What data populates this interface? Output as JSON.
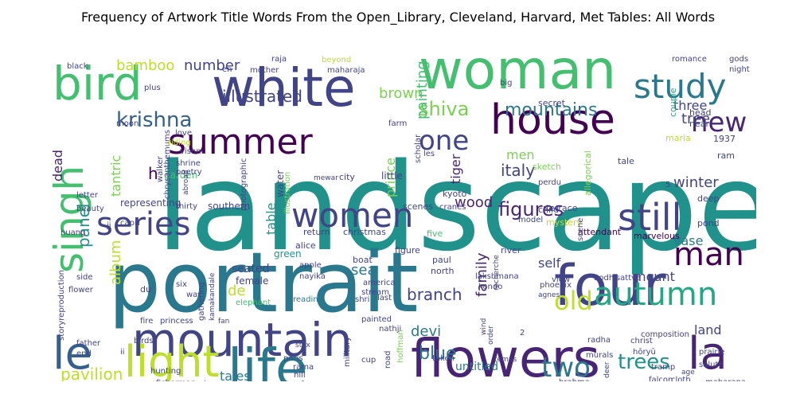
{
  "chart_data": {
    "type": "wordcloud",
    "title": "Frequency of Artwork Title Words From the Open_Library, Cleveland, Harvard, Met Tables: All Words",
    "colormap": "viridis",
    "background": "#ffffff",
    "words": [
      {
        "text": "landscape",
        "rank": 1
      },
      {
        "text": "portrait",
        "rank": 2
      },
      {
        "text": "woman",
        "rank": 3
      },
      {
        "text": "white",
        "rank": 4
      },
      {
        "text": "four",
        "rank": 5
      },
      {
        "text": "flowers",
        "rank": 6
      },
      {
        "text": "house",
        "rank": 7
      },
      {
        "text": "bird",
        "rank": 8
      },
      {
        "text": "mountain",
        "rank": 9
      },
      {
        "text": "life",
        "rank": 10
      },
      {
        "text": "light",
        "rank": 11
      },
      {
        "text": "summer",
        "rank": 12
      },
      {
        "text": "singh",
        "rank": 13
      },
      {
        "text": "le",
        "rank": 14
      },
      {
        "text": "la",
        "rank": 15
      },
      {
        "text": "still",
        "rank": 16
      },
      {
        "text": "women",
        "rank": 17
      },
      {
        "text": "study",
        "rank": 18
      },
      {
        "text": "series",
        "rank": 19
      },
      {
        "text": "autumn",
        "rank": 20
      },
      {
        "text": "man",
        "rank": 21
      },
      {
        "text": "new",
        "rank": 22
      },
      {
        "text": "two",
        "rank": 23
      },
      {
        "text": "one",
        "rank": 24
      },
      {
        "text": "old",
        "rank": 25
      },
      {
        "text": "krishna",
        "rank": 26
      },
      {
        "text": "trees",
        "rank": 27
      },
      {
        "text": "figures",
        "rank": 28
      },
      {
        "text": "mountains",
        "rank": 29
      },
      {
        "text": "shiva",
        "rank": 30
      },
      {
        "text": "blue",
        "rank": 31
      },
      {
        "text": "illustrated",
        "rank": 32
      },
      {
        "text": "pavilion",
        "rank": 33
      },
      {
        "text": "panel",
        "rank": 34
      },
      {
        "text": "branch",
        "rank": 35
      },
      {
        "text": "winter",
        "rank": 36
      },
      {
        "text": "tree",
        "rank": 37
      },
      {
        "text": "three",
        "rank": 38
      },
      {
        "text": "italy",
        "rank": 39
      },
      {
        "text": "number",
        "rank": 40
      },
      {
        "text": "bamboo",
        "rank": 41
      },
      {
        "text": "brown",
        "rank": 42
      },
      {
        "text": "painting",
        "rank": 43
      },
      {
        "text": "wood",
        "rank": 44
      },
      {
        "text": "devi",
        "rank": 45
      },
      {
        "text": "land",
        "rank": 46
      },
      {
        "text": "tales",
        "rank": 47
      },
      {
        "text": "album",
        "rank": 48
      },
      {
        "text": "family",
        "rank": 49
      },
      {
        "text": "sea",
        "rank": 50
      },
      {
        "text": "self",
        "rank": 51
      },
      {
        "text": "mount",
        "rank": 52
      },
      {
        "text": "vase",
        "rank": 53
      },
      {
        "text": "de",
        "rank": 54
      },
      {
        "text": "prince",
        "rank": 55
      },
      {
        "text": "tantric",
        "rank": 56
      },
      {
        "text": "dead",
        "rank": 57
      },
      {
        "text": "men",
        "rank": 58
      },
      {
        "text": "tiger",
        "rank": 59
      },
      {
        "text": "table",
        "rank": 60
      },
      {
        "text": "h",
        "rank": 61
      },
      {
        "text": "untitled",
        "rank": 62
      },
      {
        "text": "seated",
        "rank": 63
      },
      {
        "text": "green",
        "rank": 64
      },
      {
        "text": "female",
        "rank": 65
      },
      {
        "text": "representing",
        "rank": 66
      },
      {
        "text": "southern",
        "rank": 67
      },
      {
        "text": "garden",
        "rank": 68
      },
      {
        "text": "water",
        "rank": 69
      },
      {
        "text": "little",
        "rank": 70
      },
      {
        "text": "city",
        "rank": 71
      },
      {
        "text": "sketch",
        "rank": 72
      },
      {
        "text": "kyoto",
        "rank": 73
      },
      {
        "text": "scenes",
        "rank": 74
      },
      {
        "text": "christmas",
        "rank": 75
      },
      {
        "text": "return",
        "rank": 76
      },
      {
        "text": "alice",
        "rank": 77
      },
      {
        "text": "five",
        "rank": 78
      },
      {
        "text": "paul",
        "rank": 79
      },
      {
        "text": "north",
        "rank": 80
      },
      {
        "text": "america",
        "rank": 81
      },
      {
        "text": "stream",
        "rank": 82
      },
      {
        "text": "boat",
        "rank": 83
      },
      {
        "text": "apple",
        "rank": 84
      },
      {
        "text": "nayika",
        "rank": 85
      },
      {
        "text": "figure",
        "rank": 86
      },
      {
        "text": "river",
        "rank": 87
      },
      {
        "text": "marvelous",
        "rank": 88
      },
      {
        "text": "terrace",
        "rank": 89
      },
      {
        "text": "attendant",
        "rank": 90
      },
      {
        "text": "mystery",
        "rank": 91
      },
      {
        "text": "child",
        "rank": 92
      },
      {
        "text": "pond",
        "rank": 93
      },
      {
        "text": "deep",
        "rank": 94
      },
      {
        "text": "ram",
        "rank": 95
      },
      {
        "text": "1937",
        "rank": 96
      },
      {
        "text": "maria",
        "rank": 97
      },
      {
        "text": "couple",
        "rank": 98
      },
      {
        "text": "head",
        "rank": 99
      },
      {
        "text": "near",
        "rank": 100
      },
      {
        "text": "tale",
        "rank": 101
      },
      {
        "text": "secret",
        "rank": 102
      },
      {
        "text": "allegorical",
        "rank": 103
      },
      {
        "text": "perdu",
        "rank": 104
      },
      {
        "text": "les",
        "rank": 105
      },
      {
        "text": "model",
        "rank": 106
      },
      {
        "text": "scene",
        "rank": 107
      },
      {
        "text": "cranes",
        "rank": 108
      },
      {
        "text": "reading",
        "rank": 109
      },
      {
        "text": "last",
        "rank": 110
      },
      {
        "text": "shri",
        "rank": 111
      },
      {
        "text": "painted",
        "rank": 112
      },
      {
        "text": "nathji",
        "rank": 113
      },
      {
        "text": "lakshmana",
        "rank": 114
      },
      {
        "text": "kondo",
        "rank": 115
      },
      {
        "text": "phoenix",
        "rank": 116
      },
      {
        "text": "bodhisattva",
        "rank": 117
      },
      {
        "text": "view",
        "rank": 118
      },
      {
        "text": "agnes",
        "rank": 119
      },
      {
        "text": "composition",
        "rank": 120
      },
      {
        "text": "radha",
        "rank": 121
      },
      {
        "text": "christ",
        "rank": 122
      },
      {
        "text": "murals",
        "rank": 123
      },
      {
        "text": "hōryū",
        "rank": 124
      },
      {
        "text": "prairie",
        "rank": 125
      },
      {
        "text": "salute",
        "rank": 126
      },
      {
        "text": "tramp",
        "rank": 127
      },
      {
        "text": "falcon",
        "rank": 128
      },
      {
        "text": "cloth",
        "rank": 129
      },
      {
        "text": "maharana",
        "rank": 130
      },
      {
        "text": "age",
        "rank": 131
      },
      {
        "text": "brahma",
        "rank": 132
      },
      {
        "text": "taken",
        "rank": 133
      },
      {
        "text": "road",
        "rank": 134
      },
      {
        "text": "hoffman",
        "rank": 135
      },
      {
        "text": "temps",
        "rank": 136
      },
      {
        "text": "cup",
        "rank": 137
      },
      {
        "text": "military",
        "rank": 138
      },
      {
        "text": "paris",
        "rank": 139
      },
      {
        "text": "rama",
        "rank": 140
      },
      {
        "text": "hill",
        "rank": 141
      },
      {
        "text": "styx",
        "rank": 142
      },
      {
        "text": "hunting",
        "rank": 143
      },
      {
        "text": "fisherman",
        "rank": 144
      },
      {
        "text": "town",
        "rank": 145
      },
      {
        "text": "fire",
        "rank": 146
      },
      {
        "text": "princess",
        "rank": 147
      },
      {
        "text": "birds",
        "rank": 148
      },
      {
        "text": "father",
        "rank": 149
      },
      {
        "text": "end",
        "rank": 150
      },
      {
        "text": "ii",
        "rank": 151
      },
      {
        "text": "storyreproduction",
        "rank": 152
      },
      {
        "text": "flower",
        "rank": 153
      },
      {
        "text": "side",
        "rank": 154
      },
      {
        "text": "du",
        "rank": 155
      },
      {
        "text": "six",
        "rank": 156
      },
      {
        "text": "war",
        "rank": 157
      },
      {
        "text": "gathering",
        "rank": 158
      },
      {
        "text": "kamakandale",
        "rank": 159
      },
      {
        "text": "elephant",
        "rank": 160
      },
      {
        "text": "fan",
        "rank": 161
      },
      {
        "text": "huang",
        "rank": 162
      },
      {
        "text": "ji",
        "rank": 163
      },
      {
        "text": "beauty",
        "rank": 164
      },
      {
        "text": "capri",
        "rank": 165
      },
      {
        "text": "letter",
        "rank": 166
      },
      {
        "text": "thirty",
        "rank": 167
      },
      {
        "text": "abroad",
        "rank": 168
      },
      {
        "text": "chrysanthemums",
        "rank": 169
      },
      {
        "text": "shrine",
        "rank": 170
      },
      {
        "text": "poetry",
        "rank": 171
      },
      {
        "text": "vishnu",
        "rank": 172
      },
      {
        "text": "walker",
        "rank": 173
      },
      {
        "text": "riding",
        "rank": 174
      },
      {
        "text": "love",
        "rank": 175
      },
      {
        "text": "moon",
        "rank": 176
      },
      {
        "text": "scholar",
        "rank": 177
      },
      {
        "text": "farm",
        "rank": 178
      },
      {
        "text": "plus",
        "rank": 179
      },
      {
        "text": "black",
        "rank": 180
      },
      {
        "text": "en",
        "rank": 181
      },
      {
        "text": "mother",
        "rank": 182
      },
      {
        "text": "raja",
        "rank": 183
      },
      {
        "text": "beyond",
        "rank": 184
      },
      {
        "text": "maharaja",
        "rank": 185
      },
      {
        "text": "big",
        "rank": 186
      },
      {
        "text": "romance",
        "rank": 187
      },
      {
        "text": "gods",
        "rank": 188
      },
      {
        "text": "night",
        "rank": 189
      },
      {
        "text": "mewar",
        "rank": 190
      },
      {
        "text": "photographic",
        "rank": 191
      },
      {
        "text": "illustration",
        "rank": 192
      },
      {
        "text": "recherche",
        "rank": 193
      },
      {
        "text": "wind",
        "rank": 194
      },
      {
        "text": "order",
        "rank": 195
      },
      {
        "text": "deer",
        "rank": 196
      },
      {
        "text": "5",
        "rank": 197
      },
      {
        "text": "2",
        "rank": 198
      }
    ]
  }
}
